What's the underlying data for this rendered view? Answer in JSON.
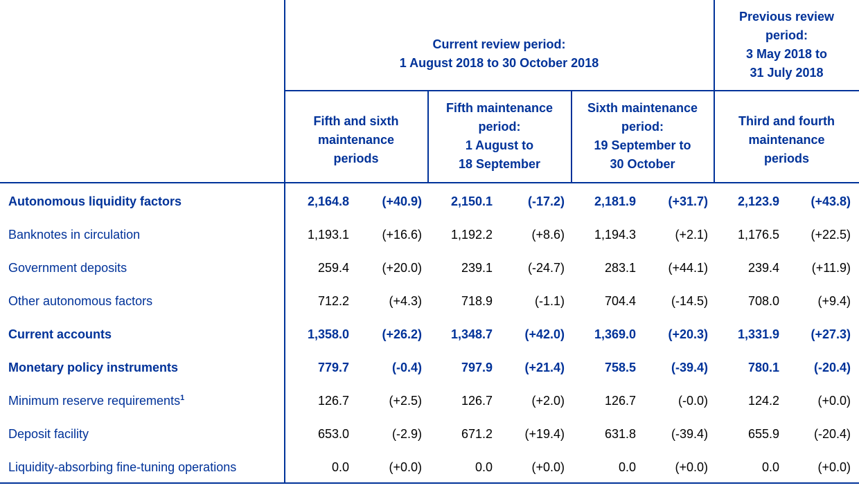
{
  "header": {
    "current_period": [
      "Current review period:",
      "1 August 2018 to 30 October 2018"
    ],
    "previous_period": [
      "Previous review",
      "period:",
      "3 May 2018 to",
      "31 July 2018"
    ],
    "col_fifth_sixth": [
      "Fifth and sixth",
      "maintenance",
      "periods"
    ],
    "col_fifth": [
      "Fifth maintenance",
      "period:",
      "1 August to",
      "18 September"
    ],
    "col_sixth": [
      "Sixth maintenance",
      "period:",
      "19 September to",
      "30 October"
    ],
    "col_third_fourth": [
      "Third and fourth",
      "maintenance",
      "periods"
    ]
  },
  "rows": [
    {
      "label": "Autonomous liquidity factors",
      "bold": true,
      "values": [
        "2,164.8",
        "(+40.9)",
        "2,150.1",
        "(-17.2)",
        "2,181.9",
        "(+31.7)",
        "2,123.9",
        "(+43.8)"
      ]
    },
    {
      "label": "Banknotes in circulation",
      "bold": false,
      "values": [
        "1,193.1",
        "(+16.6)",
        "1,192.2",
        "(+8.6)",
        "1,194.3",
        "(+2.1)",
        "1,176.5",
        "(+22.5)"
      ]
    },
    {
      "label": "Government deposits",
      "bold": false,
      "values": [
        "259.4",
        "(+20.0)",
        "239.1",
        "(-24.7)",
        "283.1",
        "(+44.1)",
        "239.4",
        "(+11.9)"
      ]
    },
    {
      "label": "Other autonomous factors",
      "bold": false,
      "values": [
        "712.2",
        "(+4.3)",
        "718.9",
        "(-1.1)",
        "704.4",
        "(-14.5)",
        "708.0",
        "(+9.4)"
      ]
    },
    {
      "label": "Current accounts",
      "bold": true,
      "values": [
        "1,358.0",
        "(+26.2)",
        "1,348.7",
        "(+42.0)",
        "1,369.0",
        "(+20.3)",
        "1,331.9",
        "(+27.3)"
      ]
    },
    {
      "label": "Monetary policy instruments",
      "bold": true,
      "values": [
        "779.7",
        "(-0.4)",
        "797.9",
        "(+21.4)",
        "758.5",
        "(-39.4)",
        "780.1",
        "(-20.4)"
      ]
    },
    {
      "label": "Minimum reserve requirements",
      "footnote": "1",
      "bold": false,
      "values": [
        "126.7",
        "(+2.5)",
        "126.7",
        "(+2.0)",
        "126.7",
        "(-0.0)",
        "124.2",
        "(+0.0)"
      ]
    },
    {
      "label": "Deposit facility",
      "bold": false,
      "values": [
        "653.0",
        "(-2.9)",
        "671.2",
        "(+19.4)",
        "631.8",
        "(-39.4)",
        "655.9",
        "(-20.4)"
      ]
    },
    {
      "label": "Liquidity-absorbing fine-tuning operations",
      "bold": false,
      "values": [
        "0.0",
        "(+0.0)",
        "0.0",
        "(+0.0)",
        "0.0",
        "(+0.0)",
        "0.0",
        "(+0.0)"
      ]
    }
  ],
  "colors": {
    "accent": "#003299"
  }
}
